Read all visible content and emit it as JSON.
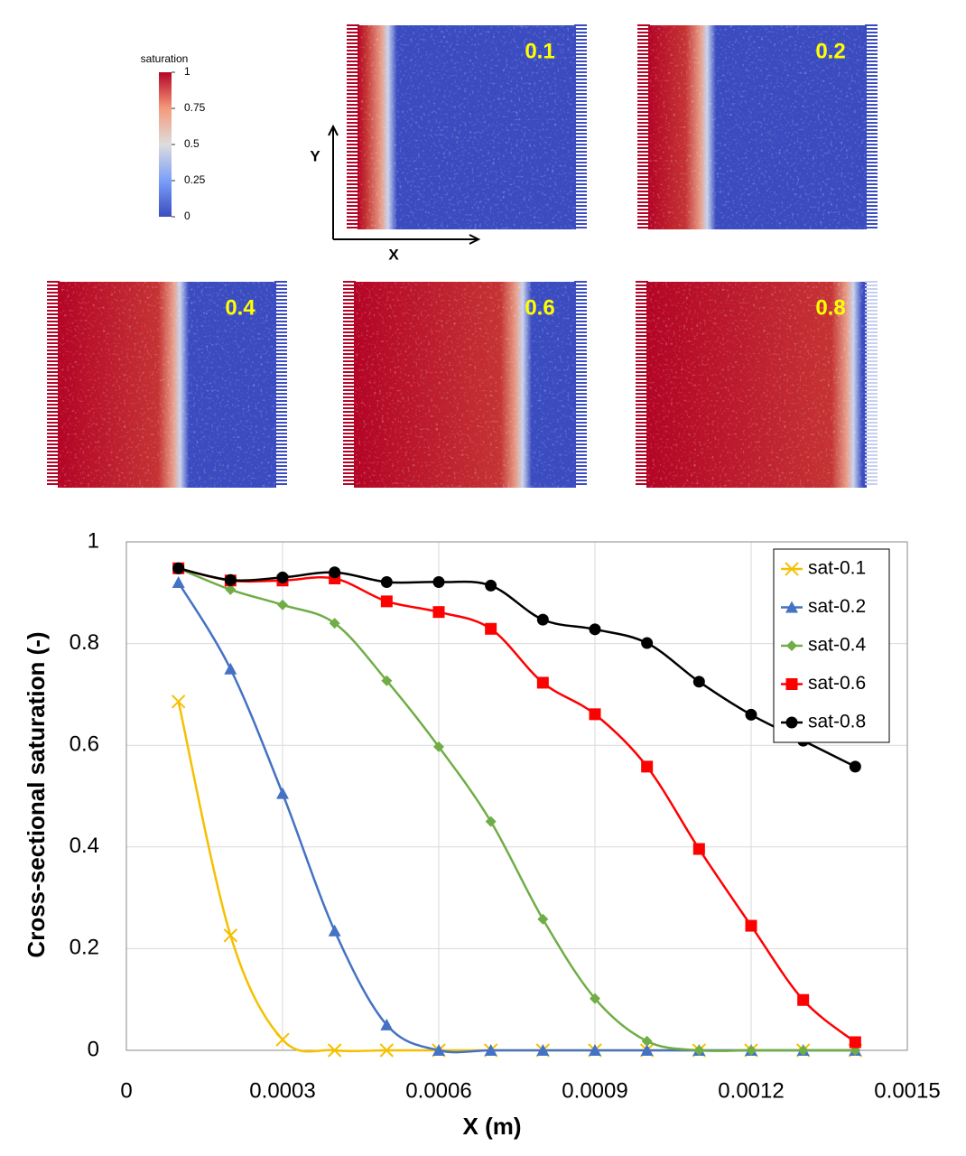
{
  "colorbar": {
    "title": "saturation",
    "ticks": [
      1,
      0.75,
      0.5,
      0.25,
      0
    ]
  },
  "axes_labels": {
    "y": "Y",
    "x": "X"
  },
  "panels": [
    "0.1",
    "0.2",
    "0.4",
    "0.6",
    "0.8"
  ],
  "chart_data": {
    "type": "line",
    "x_label": "X (m)",
    "y_label": "Cross-sectional saturation (-)",
    "x": [
      0.0001,
      0.0002,
      0.0003,
      0.0004,
      0.0005,
      0.0006,
      0.0007,
      0.0008,
      0.0009,
      0.001,
      0.0011,
      0.0012,
      0.0013,
      0.0014
    ],
    "xlim": [
      0,
      0.0015
    ],
    "xticks": [
      0,
      0.0003,
      0.0006,
      0.0009,
      0.0012,
      0.0015
    ],
    "ylim": [
      0,
      1
    ],
    "yticks": [
      0,
      0.2,
      0.4,
      0.6,
      0.8,
      1
    ],
    "grid": true,
    "legend": "upper right",
    "smooth": true,
    "series": [
      {
        "name": "sat-0.1",
        "color": "#f5c000",
        "marker": "x",
        "values": [
          0.686,
          0.226,
          0.021,
          0,
          0,
          0,
          0,
          0,
          0,
          0,
          0,
          0,
          0,
          0
        ]
      },
      {
        "name": "sat-0.2",
        "color": "#4472c4",
        "marker": "triangle",
        "values": [
          0.92,
          0.75,
          0.505,
          0.235,
          0.05,
          0,
          0,
          0,
          0,
          0,
          0,
          0,
          0,
          0
        ]
      },
      {
        "name": "sat-0.4",
        "color": "#70ad47",
        "marker": "diamond",
        "values": [
          0.948,
          0.906,
          0.876,
          0.84,
          0.727,
          0.597,
          0.45,
          0.258,
          0.102,
          0.018,
          0,
          0,
          0,
          0
        ]
      },
      {
        "name": "sat-0.6",
        "color": "#ff0000",
        "marker": "square",
        "values": [
          0.948,
          0.924,
          0.924,
          0.928,
          0.883,
          0.862,
          0.829,
          0.723,
          0.661,
          0.558,
          0.396,
          0.245,
          0.099,
          0.016
        ]
      },
      {
        "name": "sat-0.8",
        "color": "#000000",
        "marker": "circle",
        "values": [
          0.948,
          0.925,
          0.93,
          0.94,
          0.921,
          0.921,
          0.914,
          0.847,
          0.828,
          0.801,
          0.725,
          0.66,
          0.609,
          0.558
        ]
      }
    ]
  }
}
